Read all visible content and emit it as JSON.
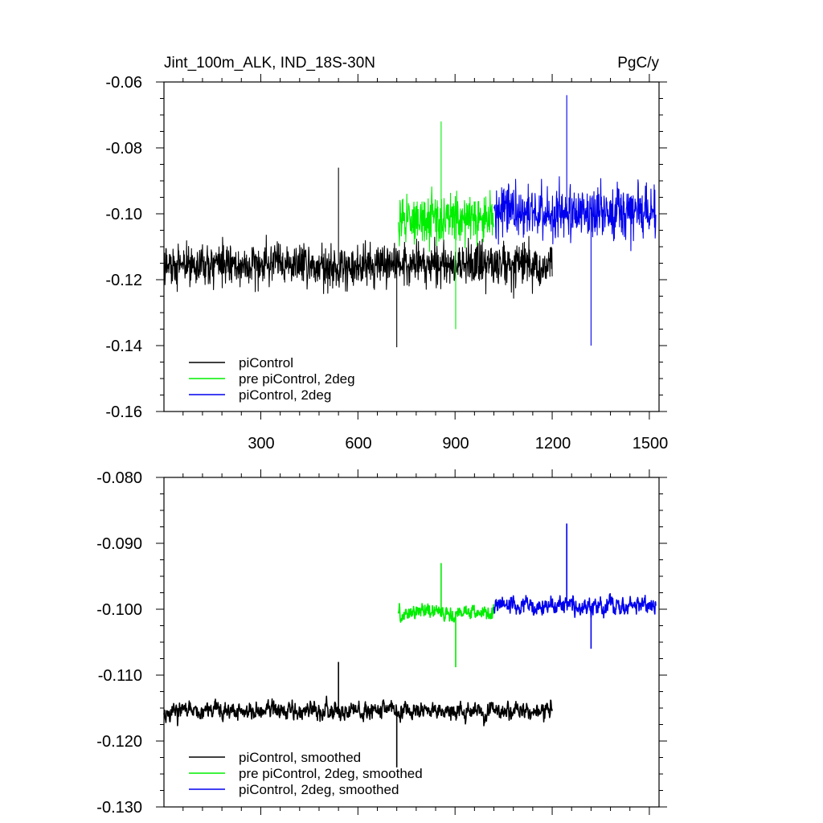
{
  "chart_data": [
    {
      "type": "line",
      "title": "Jint_100m_ALK, IND_18S-30N",
      "units": "PgC/y",
      "xlim": [
        1,
        1530
      ],
      "ylim": [
        -0.16,
        -0.06
      ],
      "xticks": [
        300,
        600,
        900,
        1200,
        1500
      ],
      "xtick_labels": [
        "300",
        "600",
        "900",
        "1200",
        "1500"
      ],
      "yticks": [
        -0.16,
        -0.14,
        -0.12,
        -0.1,
        -0.08,
        -0.06
      ],
      "ytick_labels": [
        "-0.16",
        "-0.14",
        "-0.12",
        "-0.10",
        "-0.08",
        "-0.06"
      ],
      "legend_position": "bottom-left",
      "series": [
        {
          "name": "piControl",
          "color": "#000000",
          "x_start": 1,
          "x_end": 1200,
          "mean": -0.1155,
          "amplitude": 0.0085,
          "spike_max": -0.086,
          "spike_min": -0.1405
        },
        {
          "name": "pre piControl, 2deg",
          "color": "#00ee00",
          "x_start": 725,
          "x_end": 1020,
          "mean": -0.1015,
          "amplitude": 0.0095,
          "spike_max": -0.072,
          "spike_min": -0.135
        },
        {
          "name": "piControl, 2deg",
          "color": "#0000ee",
          "x_start": 1020,
          "x_end": 1520,
          "mean": -0.0995,
          "amplitude": 0.0105,
          "spike_max": -0.064,
          "spike_min": -0.14
        }
      ]
    },
    {
      "type": "line",
      "title": "",
      "units": "",
      "xlim": [
        1,
        1530
      ],
      "ylim": [
        -0.13,
        -0.08
      ],
      "xticks": [
        300,
        600,
        900,
        1200,
        1500
      ],
      "xtick_labels": [],
      "yticks": [
        -0.13,
        -0.12,
        -0.11,
        -0.1,
        -0.09,
        -0.08
      ],
      "ytick_labels": [
        "-0.130",
        "-0.120",
        "-0.110",
        "-0.100",
        "-0.090",
        "-0.080"
      ],
      "legend_position": "bottom-left",
      "series": [
        {
          "name": "piControl, smoothed",
          "color": "#000000",
          "x_start": 1,
          "x_end": 1200,
          "mean": -0.1155,
          "amplitude": 0.0025,
          "spike_max": -0.108,
          "spike_min": -0.124
        },
        {
          "name": "pre piControl, 2deg, smoothed",
          "color": "#00ee00",
          "x_start": 725,
          "x_end": 1020,
          "mean": -0.1005,
          "amplitude": 0.0022,
          "spike_max": -0.093,
          "spike_min": -0.1088
        },
        {
          "name": "piControl, 2deg, smoothed",
          "color": "#0000ee",
          "x_start": 1020,
          "x_end": 1520,
          "mean": -0.0995,
          "amplitude": 0.0025,
          "spike_max": -0.087,
          "spike_min": -0.106
        }
      ]
    }
  ]
}
